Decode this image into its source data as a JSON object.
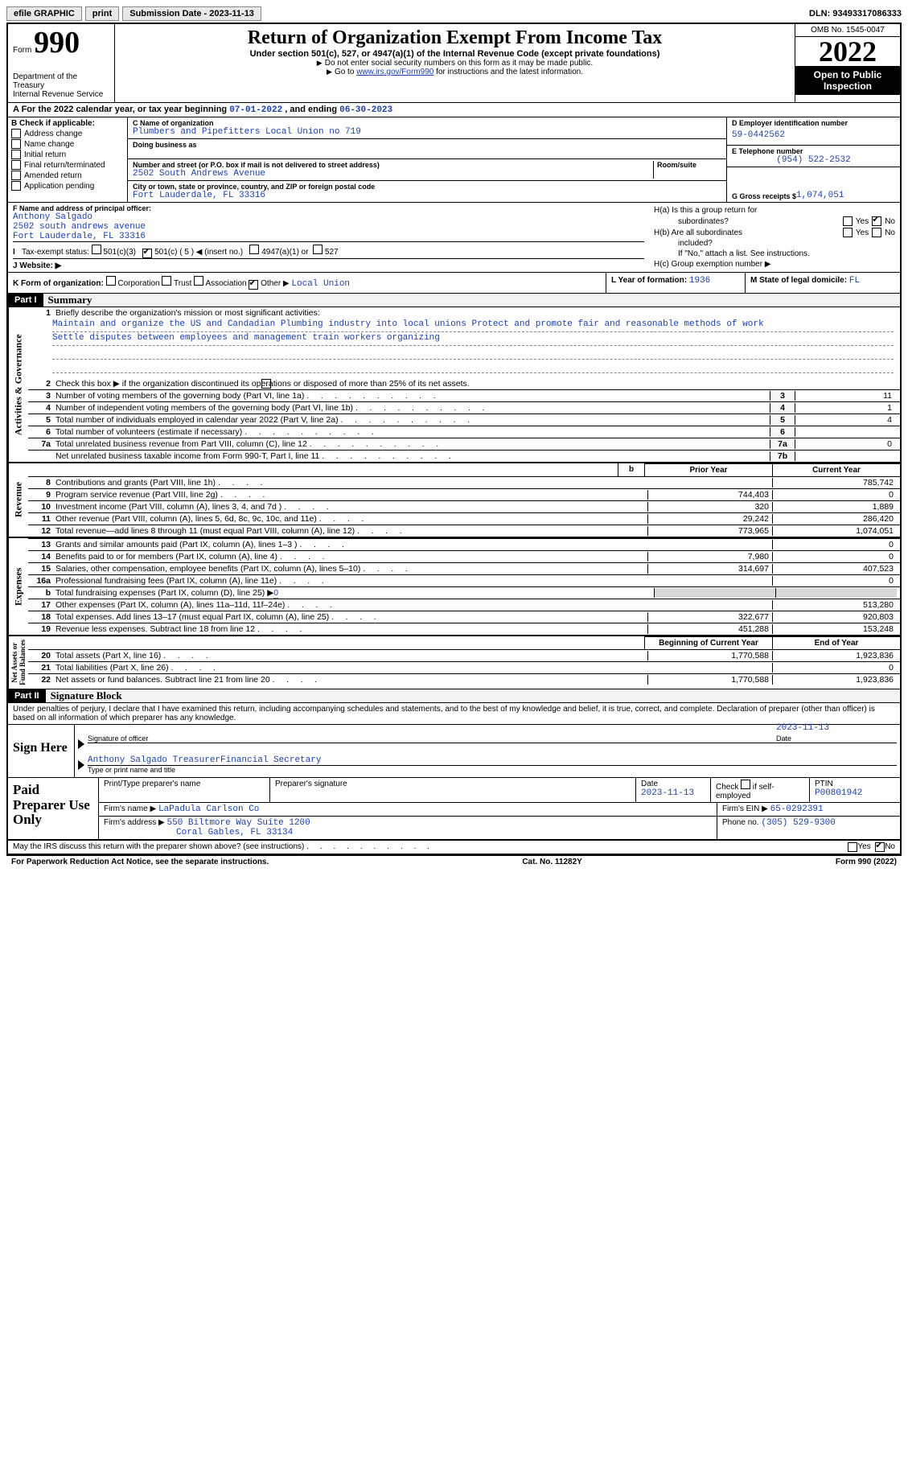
{
  "topbar": {
    "efile": "efile GRAPHIC",
    "print": "print",
    "subdate_label": "Submission Date - 2023-11-13",
    "dln_label": "DLN: 93493317086333"
  },
  "header": {
    "form_word": "Form",
    "form_no": "990",
    "title": "Return of Organization Exempt From Income Tax",
    "sub1": "Under section 501(c), 527, or 4947(a)(1) of the Internal Revenue Code (except private foundations)",
    "sub2": "Do not enter social security numbers on this form as it may be made public.",
    "sub3_pre": "Go to ",
    "sub3_link": "www.irs.gov/Form990",
    "sub3_post": " for instructions and the latest information.",
    "dept": "Department of the Treasury",
    "irs": "Internal Revenue Service",
    "omb": "OMB No. 1545-0047",
    "year": "2022",
    "open": "Open to Public Inspection"
  },
  "rowA": {
    "pre": "A For the 2022 calendar year, or tax year beginning ",
    "begin": "07-01-2022",
    "mid": "   , and ending ",
    "end": "06-30-2023"
  },
  "colB": {
    "label": "B Check if applicable:",
    "items": [
      "Address change",
      "Name change",
      "Initial return",
      "Final return/terminated",
      "Amended return",
      "Application pending"
    ]
  },
  "colC": {
    "name_lbl": "C Name of organization",
    "name": "Plumbers and Pipefitters Local Union no 719",
    "dba_lbl": "Doing business as",
    "addr_lbl": "Number and street (or P.O. box if mail is not delivered to street address)",
    "room_lbl": "Room/suite",
    "addr": "2502 South Andrews Avenue",
    "city_lbl": "City or town, state or province, country, and ZIP or foreign postal code",
    "city": "Fort Lauderdale, FL  33316"
  },
  "colDE": {
    "d_lbl": "D Employer identification number",
    "d_val": "59-0442562",
    "e_lbl": "E Telephone number",
    "e_val": "(954) 522-2532",
    "g_lbl": "G Gross receipts $",
    "g_val": "1,074,051"
  },
  "rowF": {
    "lbl": "F Name and address of principal officer:",
    "name": "Anthony Salgado",
    "addr1": "2502 south andrews avenue",
    "addr2": "Fort Lauderdale, FL  33316"
  },
  "rowH": {
    "ha1": "H(a)  Is this a group return for",
    "ha2": "subordinates?",
    "hb1": "H(b)  Are all subordinates",
    "hb2": "included?",
    "hb_note": "If \"No,\" attach a list. See instructions.",
    "hc": "H(c)  Group exemption number ▶",
    "yes": "Yes",
    "no": "No"
  },
  "rowI": {
    "lbl": "Tax-exempt status:",
    "o1": "501(c)(3)",
    "o2": "501(c) ( 5 ) ◀ (insert no.)",
    "o3": "4947(a)(1) or",
    "o4": "527"
  },
  "rowJ": {
    "lbl": "J   Website: ▶"
  },
  "rowK": {
    "lbl": "K Form of organization:",
    "opts": [
      "Corporation",
      "Trust",
      "Association",
      "Other ▶"
    ],
    "other_val": "Local Union",
    "l_lbl": "L Year of formation:",
    "l_val": "1936",
    "m_lbl": "M State of legal domicile:",
    "m_val": "FL"
  },
  "part1": {
    "hdr": "Part I",
    "title": "Summary",
    "l1_lbl": "Briefly describe the organization's mission or most significant activities:",
    "mission1": "Maintain and organize the US and Candadian Plumbing industry into local unions Protect and promote fair and reasonable methods of work",
    "mission2": "Settle disputes between employees and management train workers organizing",
    "l2": "Check this box ▶        if the organization discontinued its operations or disposed of more than 25% of its net assets.",
    "lines": [
      {
        "n": "3",
        "t": "Number of voting members of the governing body (Part VI, line 1a)",
        "box": "3",
        "v": "11"
      },
      {
        "n": "4",
        "t": "Number of independent voting members of the governing body (Part VI, line 1b)",
        "box": "4",
        "v": "1"
      },
      {
        "n": "5",
        "t": "Total number of individuals employed in calendar year 2022 (Part V, line 2a)",
        "box": "5",
        "v": "4"
      },
      {
        "n": "6",
        "t": "Total number of volunteers (estimate if necessary)",
        "box": "6",
        "v": ""
      },
      {
        "n": "7a",
        "t": "Total unrelated business revenue from Part VIII, column (C), line 12",
        "box": "7a",
        "v": "0"
      },
      {
        "n": "",
        "t": "Net unrelated business taxable income from Form 990-T, Part I, line 11",
        "box": "7b",
        "v": ""
      }
    ],
    "pcy_hdr": {
      "prior": "Prior Year",
      "curr": "Current Year"
    },
    "revenue": [
      {
        "n": "8",
        "t": "Contributions and grants (Part VIII, line 1h)",
        "p": "",
        "c": "785,742"
      },
      {
        "n": "9",
        "t": "Program service revenue (Part VIII, line 2g)",
        "p": "744,403",
        "c": "0"
      },
      {
        "n": "10",
        "t": "Investment income (Part VIII, column (A), lines 3, 4, and 7d )",
        "p": "320",
        "c": "1,889"
      },
      {
        "n": "11",
        "t": "Other revenue (Part VIII, column (A), lines 5, 6d, 8c, 9c, 10c, and 11e)",
        "p": "29,242",
        "c": "286,420"
      },
      {
        "n": "12",
        "t": "Total revenue—add lines 8 through 11 (must equal Part VIII, column (A), line 12)",
        "p": "773,965",
        "c": "1,074,051"
      }
    ],
    "expenses": [
      {
        "n": "13",
        "t": "Grants and similar amounts paid (Part IX, column (A), lines 1–3 )",
        "p": "",
        "c": "0"
      },
      {
        "n": "14",
        "t": "Benefits paid to or for members (Part IX, column (A), line 4)",
        "p": "7,980",
        "c": "0"
      },
      {
        "n": "15",
        "t": "Salaries, other compensation, employee benefits (Part IX, column (A), lines 5–10)",
        "p": "314,697",
        "c": "407,523"
      },
      {
        "n": "16a",
        "t": "Professional fundraising fees (Part IX, column (A), line 11e)",
        "p": "",
        "c": "0"
      },
      {
        "n": "b",
        "t": "Total fundraising expenses (Part IX, column (D), line 25) ▶",
        "p": "gray",
        "c": "gray",
        "inline": "0"
      },
      {
        "n": "17",
        "t": "Other expenses (Part IX, column (A), lines 11a–11d, 11f–24e)",
        "p": "",
        "c": "513,280"
      },
      {
        "n": "18",
        "t": "Total expenses. Add lines 13–17 (must equal Part IX, column (A), line 25)",
        "p": "322,677",
        "c": "920,803"
      },
      {
        "n": "19",
        "t": "Revenue less expenses. Subtract line 18 from line 12",
        "p": "451,288",
        "c": "153,248"
      }
    ],
    "na_hdr": {
      "b": "Beginning of Current Year",
      "e": "End of Year"
    },
    "netassets": [
      {
        "n": "20",
        "t": "Total assets (Part X, line 16)",
        "p": "1,770,588",
        "c": "1,923,836"
      },
      {
        "n": "21",
        "t": "Total liabilities (Part X, line 26)",
        "p": "",
        "c": "0"
      },
      {
        "n": "22",
        "t": "Net assets or fund balances. Subtract line 21 from line 20",
        "p": "1,770,588",
        "c": "1,923,836"
      }
    ],
    "vtabs": {
      "ag": "Activities & Governance",
      "rev": "Revenue",
      "exp": "Expenses",
      "na": "Net Assets or\nFund Balances"
    }
  },
  "part2": {
    "hdr": "Part II",
    "title": "Signature Block",
    "decl": "Under penalties of perjury, I declare that I have examined this return, including accompanying schedules and statements, and to the best of my knowledge and belief, it is true, correct, and complete. Declaration of preparer (other than officer) is based on all information of which preparer has any knowledge.",
    "sign_here": "Sign Here",
    "sig_officer_lbl": "Signature of officer",
    "date_lbl": "Date",
    "date_val": "2023-11-13",
    "name_val": "Anthony Salgado  TreasurerFinancial Secretary",
    "name_lbl": "Type or print name and title",
    "paid": "Paid Preparer Use Only",
    "p_name_lbl": "Print/Type preparer's name",
    "p_sig_lbl": "Preparer's signature",
    "p_date_lbl": "Date",
    "p_date_val": "2023-11-13",
    "p_check_lbl": "Check         if self-employed",
    "p_ptin_lbl": "PTIN",
    "p_ptin_val": "P00801942",
    "firm_name_lbl": "Firm's name     ▶",
    "firm_name": "LaPadula Carlson Co",
    "firm_ein_lbl": "Firm's EIN ▶",
    "firm_ein": "65-0292391",
    "firm_addr_lbl": "Firm's address ▶",
    "firm_addr1": "550 Biltmore Way Suite 1200",
    "firm_addr2": "Coral Gables, FL  33134",
    "phone_lbl": "Phone no.",
    "phone_val": "(305) 529-9300",
    "may_irs": "May the IRS discuss this return with the preparer shown above? (see instructions)",
    "yes": "Yes",
    "no": "No"
  },
  "footer": {
    "pra": "For Paperwork Reduction Act Notice, see the separate instructions.",
    "cat": "Cat. No. 11282Y",
    "form": "Form 990 (2022)"
  }
}
